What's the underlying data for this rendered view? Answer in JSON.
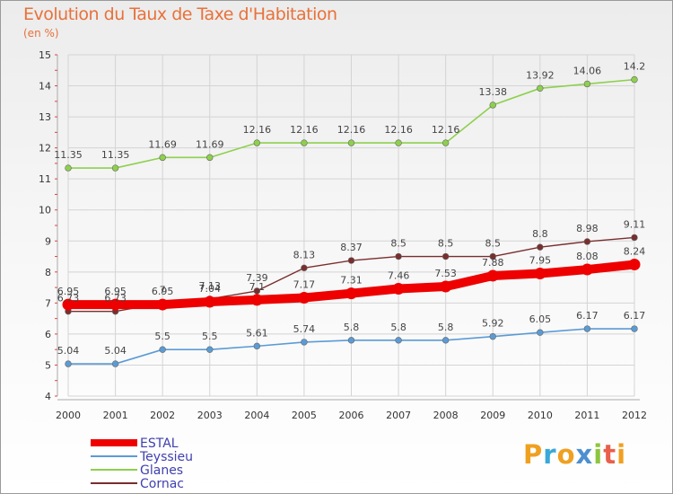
{
  "title": "Evolution du Taux de Taxe d'Habitation",
  "subtitle": "(en %)",
  "logo": {
    "letters": [
      {
        "ch": "P",
        "color": "#f0a020"
      },
      {
        "ch": "r",
        "color": "#3aa8d8"
      },
      {
        "ch": "o",
        "color": "#f0a020"
      },
      {
        "ch": "x",
        "color": "#4e8fd0"
      },
      {
        "ch": "i",
        "color": "#8cc63e"
      },
      {
        "ch": "t",
        "color": "#e8604a"
      },
      {
        "ch": "i",
        "color": "#f0a020"
      }
    ]
  },
  "chart_data": {
    "type": "line",
    "x": [
      "2000",
      "2001",
      "2002",
      "2003",
      "2004",
      "2005",
      "2006",
      "2007",
      "2008",
      "2009",
      "2010",
      "2011",
      "2012"
    ],
    "ylim": [
      4,
      15
    ],
    "yticks": [
      "4",
      "5",
      "6",
      "7",
      "8",
      "9",
      "10",
      "11",
      "12",
      "13",
      "14",
      "15"
    ],
    "grid": true,
    "legend_position": "bottom-left",
    "series": [
      {
        "name": "ESTAL",
        "color": "#ee0000",
        "values": [
          6.95,
          6.95,
          6.95,
          7.04,
          7.1,
          7.17,
          7.31,
          7.46,
          7.53,
          7.88,
          7.95,
          8.08,
          8.24
        ],
        "labels": [
          "6.95",
          "6.95",
          "6.95",
          "7.04",
          "7.1",
          "7.17",
          "7.31",
          "7.46",
          "7.53",
          "7.88",
          "7.95",
          "8.08",
          "8.24"
        ]
      },
      {
        "name": "Teyssieu",
        "color": "#5b9bd5",
        "values": [
          5.04,
          5.04,
          5.5,
          5.5,
          5.61,
          5.74,
          5.8,
          5.8,
          5.8,
          5.92,
          6.05,
          6.17,
          6.17
        ],
        "labels": [
          "5.04",
          "5.04",
          "5.5",
          "5.5",
          "5.61",
          "5.74",
          "5.8",
          "5.8",
          "5.8",
          "5.92",
          "6.05",
          "6.17",
          "6.17"
        ]
      },
      {
        "name": "Glanes",
        "color": "#8dd04d",
        "values": [
          11.35,
          11.35,
          11.69,
          11.69,
          12.16,
          12.16,
          12.16,
          12.16,
          12.16,
          13.38,
          13.92,
          14.06,
          14.2
        ],
        "labels": [
          "11.35",
          "11.35",
          "11.69",
          "11.69",
          "12.16",
          "12.16",
          "12.16",
          "12.16",
          "12.16",
          "13.38",
          "13.92",
          "14.06",
          "14.2"
        ]
      },
      {
        "name": "Cornac",
        "color": "#7a2e2e",
        "values": [
          6.73,
          6.73,
          7.0,
          7.13,
          7.39,
          8.13,
          8.37,
          8.5,
          8.5,
          8.5,
          8.8,
          8.98,
          9.11
        ],
        "labels": [
          "6.73",
          "6.73",
          "7",
          "7.13",
          "7.39",
          "8.13",
          "8.37",
          "8.5",
          "8.5",
          "8.5",
          "8.8",
          "8.98",
          "9.11"
        ]
      }
    ]
  }
}
